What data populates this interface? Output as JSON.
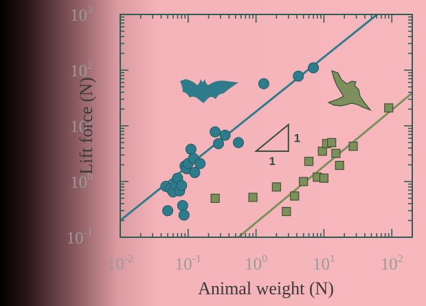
{
  "chart_data": {
    "type": "scatter",
    "xlabel": "Animal weight (N)",
    "ylabel": "Lift force (N)",
    "x_scale": "log",
    "y_scale": "log",
    "xlim": [
      0.01,
      200
    ],
    "ylim": [
      0.1,
      1000
    ],
    "x_ticks": [
      0.01,
      0.1,
      1,
      10,
      100
    ],
    "x_tick_labels": [
      [
        "10",
        "-2"
      ],
      [
        "10",
        "-1"
      ],
      [
        "10",
        "0"
      ],
      [
        "10",
        "1"
      ],
      [
        "10",
        "2"
      ]
    ],
    "y_ticks": [
      0.1,
      1,
      10,
      100,
      1000
    ],
    "y_tick_labels": [
      [
        "10",
        "-1"
      ],
      [
        "10",
        "0"
      ],
      [
        "10",
        "1"
      ],
      [
        "10",
        "2"
      ],
      [
        "10",
        "3"
      ]
    ],
    "slope_label_horizontal": "1",
    "slope_label_vertical": "1",
    "series": [
      {
        "marker": "circle",
        "color": "#2e7b8c",
        "icon": "bat-silhouette-icon",
        "points": [
          [
            0.047,
            0.82
          ],
          [
            0.05,
            0.3
          ],
          [
            0.055,
            0.75
          ],
          [
            0.06,
            0.65
          ],
          [
            0.065,
            0.88
          ],
          [
            0.07,
            1.15
          ],
          [
            0.075,
            0.68
          ],
          [
            0.08,
            0.85
          ],
          [
            0.083,
            0.37
          ],
          [
            0.087,
            0.25
          ],
          [
            0.09,
            1.9
          ],
          [
            0.095,
            1.7
          ],
          [
            0.1,
            2.1
          ],
          [
            0.11,
            3.8
          ],
          [
            0.12,
            2.6
          ],
          [
            0.125,
            1.45
          ],
          [
            0.15,
            2.1
          ],
          [
            0.25,
            7.8
          ],
          [
            0.28,
            4.8
          ],
          [
            0.35,
            6.8
          ],
          [
            0.55,
            5.0
          ],
          [
            1.3,
            57
          ],
          [
            4.2,
            78
          ],
          [
            7.0,
            110
          ]
        ],
        "fit": [
          [
            0.01,
            0.2
          ],
          [
            200,
            3200
          ]
        ]
      },
      {
        "marker": "square",
        "color": "#7d8f5a",
        "icon": "bird-silhouette-icon",
        "points": [
          [
            0.25,
            0.5
          ],
          [
            0.9,
            0.52
          ],
          [
            2.0,
            0.8
          ],
          [
            2.8,
            0.29
          ],
          [
            3.7,
            0.55
          ],
          [
            5.0,
            1.0
          ],
          [
            6.0,
            2.3
          ],
          [
            8.0,
            1.2
          ],
          [
            9.5,
            3.5
          ],
          [
            10.0,
            1.15
          ],
          [
            11.0,
            4.8
          ],
          [
            13.0,
            5.0
          ],
          [
            15.0,
            3.2
          ],
          [
            17.0,
            1.95
          ],
          [
            27.0,
            4.3
          ],
          [
            90.0,
            21
          ]
        ],
        "fit": [
          [
            0.55,
            0.1
          ],
          [
            200,
            39
          ]
        ]
      }
    ],
    "slope_triangle": {
      "p1": [
        1.0,
        3.5
      ],
      "p2": [
        3.0,
        3.5
      ],
      "p3": [
        3.0,
        10.5
      ]
    }
  }
}
